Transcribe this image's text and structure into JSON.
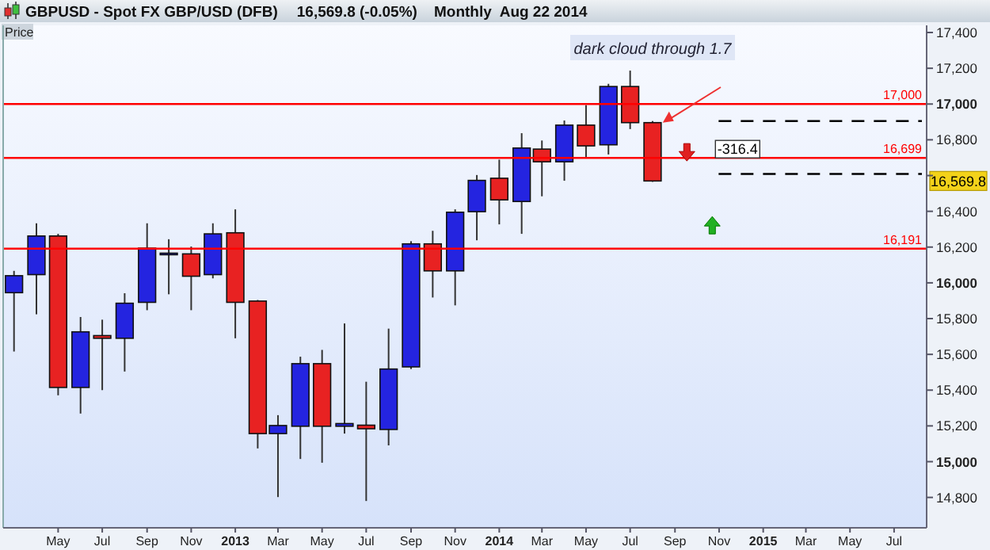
{
  "chart_data": {
    "type": "candlestick",
    "title": "GBPUSD - Spot FX GBP/USD (DFB)",
    "subtitle": "16,569.8 (-0.05%)    Monthly  Aug 22 2014",
    "ylabel": "Price",
    "x": [
      "2012-03",
      "2012-04",
      "2012-05",
      "2012-06",
      "2012-07",
      "2012-08",
      "2012-09",
      "2012-10",
      "2012-11",
      "2012-12",
      "2013-01",
      "2013-02",
      "2013-03",
      "2013-04",
      "2013-05",
      "2013-06",
      "2013-07",
      "2013-08",
      "2013-09",
      "2013-10",
      "2013-11",
      "2013-12",
      "2014-01",
      "2014-02",
      "2014-03",
      "2014-04",
      "2014-05",
      "2014-06",
      "2014-07",
      "2014-08"
    ],
    "ohlc": [
      [
        15945,
        16067,
        15616,
        16040
      ],
      [
        16046,
        16333,
        15824,
        16262
      ],
      [
        16262,
        16274,
        15371,
        15415
      ],
      [
        15415,
        15809,
        15269,
        15726
      ],
      [
        15705,
        15794,
        15400,
        15690
      ],
      [
        15690,
        15942,
        15504,
        15886
      ],
      [
        15891,
        16333,
        15847,
        16194
      ],
      [
        16166,
        16244,
        15936,
        16162
      ],
      [
        16162,
        16203,
        15847,
        16037
      ],
      [
        16046,
        16333,
        16025,
        16274
      ],
      [
        16280,
        16411,
        15690,
        15891
      ],
      [
        15898,
        15904,
        15074,
        15157
      ],
      [
        15157,
        15260,
        14802,
        15202
      ],
      [
        15198,
        15587,
        15015,
        15548
      ],
      [
        15548,
        15625,
        14994,
        15198
      ],
      [
        15198,
        15773,
        15157,
        15213
      ],
      [
        15204,
        15447,
        14780,
        15184
      ],
      [
        15180,
        15744,
        15091,
        15518
      ],
      [
        15530,
        16233,
        15518,
        16218
      ],
      [
        16218,
        16291,
        15918,
        16067
      ],
      [
        16067,
        16411,
        15874,
        16395
      ],
      [
        16398,
        16603,
        16238,
        16573
      ],
      [
        16585,
        16689,
        16327,
        16464
      ],
      [
        16455,
        16837,
        16274,
        16754
      ],
      [
        16748,
        16796,
        16484,
        16677
      ],
      [
        16677,
        16908,
        16571,
        16882
      ],
      [
        16882,
        16994,
        16704,
        16766
      ],
      [
        16772,
        17113,
        16718,
        17098
      ],
      [
        17098,
        17187,
        16860,
        16896
      ],
      [
        16896,
        16905,
        16565,
        16569.8
      ]
    ],
    "colors": [
      "#2424e0",
      "#2424e0",
      "#e82222",
      "#2424e0",
      "#e82222",
      "#2424e0",
      "#2424e0",
      "#2424e0",
      "#e82222",
      "#2424e0",
      "#e82222",
      "#e82222",
      "#2424e0",
      "#2424e0",
      "#e82222",
      "#2424e0",
      "#e82222",
      "#2424e0",
      "#2424e0",
      "#e82222",
      "#2424e0",
      "#2424e0",
      "#e82222",
      "#2424e0",
      "#e82222",
      "#2424e0",
      "#e82222",
      "#2424e0",
      "#e82222",
      "#e82222"
    ],
    "xlim": [
      "2012-02-15",
      "2015-08-15"
    ],
    "xticks": [
      {
        "value": "2012-05",
        "label": "May"
      },
      {
        "value": "2012-07",
        "label": "Jul"
      },
      {
        "value": "2012-09",
        "label": "Sep"
      },
      {
        "value": "2012-11",
        "label": "Nov"
      },
      {
        "value": "2013-01",
        "label": "2013"
      },
      {
        "value": "2013-03",
        "label": "Mar"
      },
      {
        "value": "2013-05",
        "label": "May"
      },
      {
        "value": "2013-07",
        "label": "Jul"
      },
      {
        "value": "2013-09",
        "label": "Sep"
      },
      {
        "value": "2013-11",
        "label": "Nov"
      },
      {
        "value": "2014-01",
        "label": "2014"
      },
      {
        "value": "2014-03",
        "label": "Mar"
      },
      {
        "value": "2014-05",
        "label": "May"
      },
      {
        "value": "2014-07",
        "label": "Jul"
      },
      {
        "value": "2014-09",
        "label": "Sep"
      },
      {
        "value": "2014-11",
        "label": "Nov"
      },
      {
        "value": "2015-01",
        "label": "2015"
      },
      {
        "value": "2015-03",
        "label": "Mar"
      },
      {
        "value": "2015-05",
        "label": "May"
      },
      {
        "value": "2015-07",
        "label": "Jul"
      }
    ],
    "ylim": [
      14630,
      17440
    ],
    "yticks": [
      {
        "value": 14800,
        "label": "14,800"
      },
      {
        "value": 15000,
        "label": "15,000"
      },
      {
        "value": 15200,
        "label": "15,200"
      },
      {
        "value": 15400,
        "label": "15,400"
      },
      {
        "value": 15600,
        "label": "15,600"
      },
      {
        "value": 15800,
        "label": "15,800"
      },
      {
        "value": 16000,
        "label": "16,000"
      },
      {
        "value": 16200,
        "label": "16,200"
      },
      {
        "value": 16400,
        "label": "16,400"
      },
      {
        "value": 16600,
        "label": null
      },
      {
        "value": 16800,
        "label": "16,800"
      },
      {
        "value": 17000,
        "label": "17,000"
      },
      {
        "value": 17200,
        "label": "17,200"
      },
      {
        "value": 17400,
        "label": "17,400"
      }
    ],
    "ref_lines": [
      {
        "axis": "y",
        "value": 17000,
        "label": "17,000",
        "color": "#ff0000"
      },
      {
        "axis": "y",
        "value": 16699,
        "label": "16,699",
        "color": "#ff0000"
      },
      {
        "axis": "y",
        "value": 16191,
        "label": "16,191",
        "color": "#ff0000"
      },
      {
        "axis": "y",
        "value": 16905,
        "label": null,
        "color": "#000000",
        "line_style": "dashed"
      },
      {
        "axis": "y",
        "value": 16609,
        "label": null,
        "color": "#000000",
        "line_style": "dashed"
      }
    ],
    "annotations": [
      "dark cloud through 1.7",
      {
        "text": "-316.4",
        "x": "2014-11-20",
        "y": 16699
      },
      {
        "text": "16,569.8",
        "y": 16569.8
      }
    ],
    "tick_labels": "xy"
  }
}
